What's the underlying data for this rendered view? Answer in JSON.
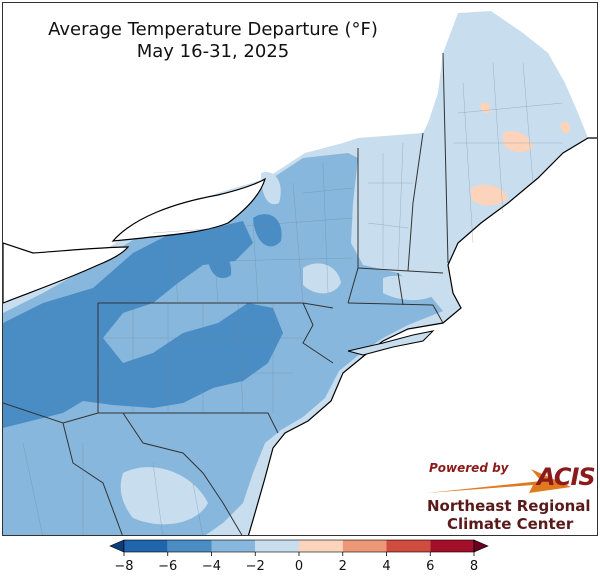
{
  "title": {
    "line1": "Average Temperature Departure (°F)",
    "line2": "May 16-31, 2025"
  },
  "logo": {
    "powered_by": "Powered by",
    "acis": "ACIS",
    "org_line1": "Northeast Regional",
    "org_line2": "Climate Center"
  },
  "colorbar": {
    "ticks": [
      "−8",
      "−6",
      "−4",
      "−2",
      "0",
      "2",
      "4",
      "6",
      "8"
    ],
    "colors": [
      "#2166ac",
      "#4a8dc5",
      "#87b7dc",
      "#c8ddee",
      "#fbd4bb",
      "#ec9775",
      "#cf4c3f",
      "#a30f29"
    ],
    "extend": "both"
  },
  "map": {
    "lake_color": "#ffffff",
    "ocean_color": "#ffffff",
    "level_colors": {
      "-6_to_-4": "#4a8dc5",
      "-4_to_-2": "#87b7dc",
      "-2_to_0": "#c8ddee",
      "0_to_2": "#fbd4bb"
    }
  }
}
